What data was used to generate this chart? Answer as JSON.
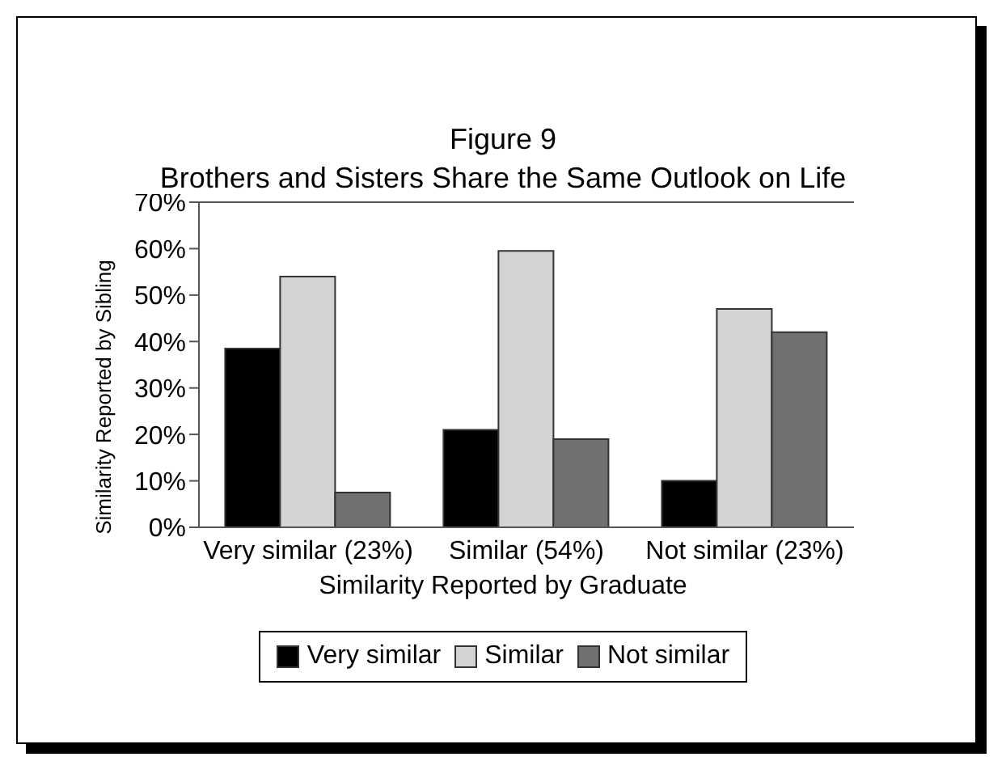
{
  "chart_data": {
    "type": "bar",
    "title": "Figure 9",
    "subtitle": "Brothers and Sisters Share the Same Outlook on Life",
    "xlabel": "Similarity Reported by Graduate",
    "ylabel": "Similarity Reported by Sibling",
    "categories": [
      "Very similar (23%)",
      "Similar (54%)",
      "Not similar (23%)"
    ],
    "series": [
      {
        "name": "Very similar",
        "color": "#000000",
        "values": [
          38.5,
          21,
          10
        ]
      },
      {
        "name": "Similar",
        "color": "#d3d3d3",
        "values": [
          54,
          59.5,
          47
        ]
      },
      {
        "name": "Not similar",
        "color": "#707070",
        "values": [
          7.5,
          19,
          42
        ]
      }
    ],
    "ylim": [
      0,
      70
    ],
    "yticks": [
      {
        "value": 0,
        "label": "0%"
      },
      {
        "value": 10,
        "label": "10%"
      },
      {
        "value": 20,
        "label": "20%"
      },
      {
        "value": 30,
        "label": "30%"
      },
      {
        "value": 40,
        "label": "40%"
      },
      {
        "value": 50,
        "label": "50%"
      },
      {
        "value": 60,
        "label": "60%"
      },
      {
        "value": 70,
        "label": "70%"
      }
    ],
    "grid": false,
    "legend": "bottom"
  }
}
